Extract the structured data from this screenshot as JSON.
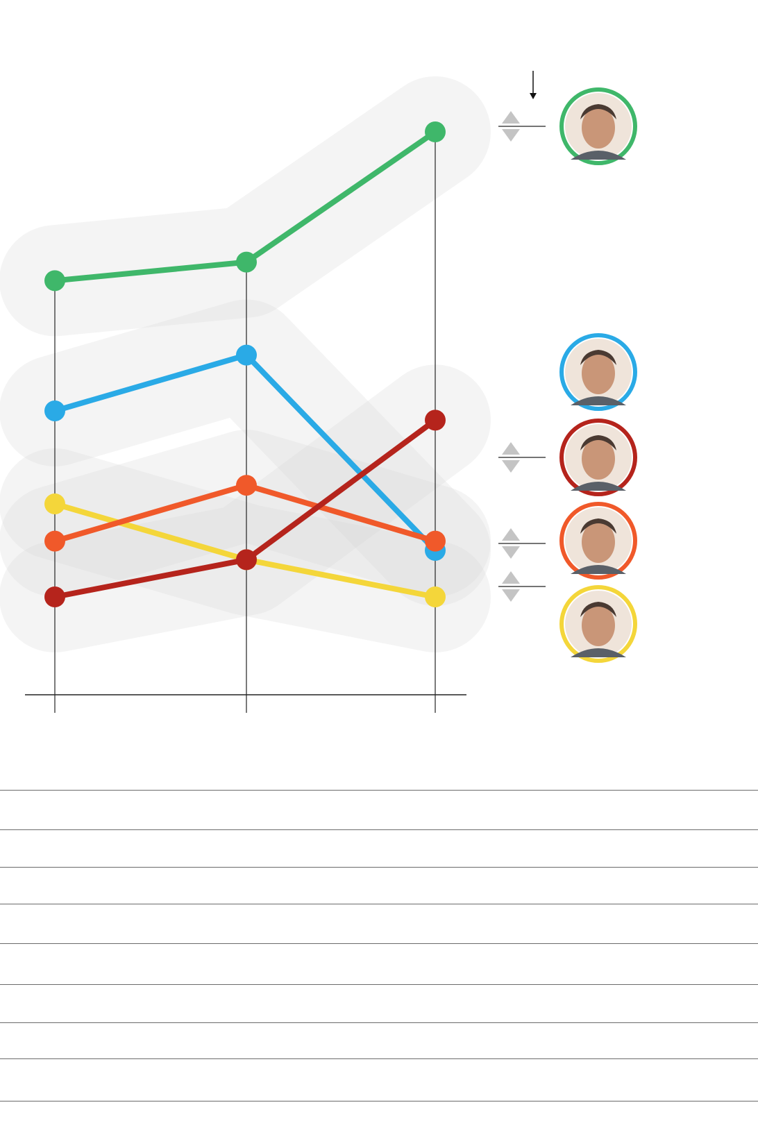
{
  "chart_data": {
    "type": "line",
    "x": [
      0,
      1,
      2
    ],
    "ylim": [
      0,
      100
    ],
    "series": [
      {
        "color": "#3fb76a",
        "values": [
          88,
          90,
          104
        ],
        "avatar": "green"
      },
      {
        "color": "#2aaae6",
        "values": [
          74,
          80,
          59
        ],
        "avatar": "blue"
      },
      {
        "color": "#f4d63a",
        "values": [
          64,
          58,
          54
        ],
        "avatar": "yellow"
      },
      {
        "color": "#f0592a",
        "values": [
          60,
          66,
          60
        ],
        "avatar": "orange"
      },
      {
        "color": "#b5241c",
        "values": [
          54,
          58,
          73
        ],
        "avatar": "darkred"
      }
    ],
    "grid": false,
    "band_color": "#d4d4d4"
  },
  "avatars": [
    {
      "name": "green",
      "color": "#3fb76a",
      "icon": "portrait-icon",
      "has_trend": true
    },
    {
      "name": "blue",
      "color": "#2aaae6",
      "icon": "portrait-icon",
      "has_trend": false
    },
    {
      "name": "darkred",
      "color": "#b5241c",
      "icon": "portrait-icon",
      "has_trend": true
    },
    {
      "name": "orange",
      "color": "#f0592a",
      "icon": "portrait-icon",
      "has_trend": true
    },
    {
      "name": "yellow",
      "color": "#f4d63a",
      "icon": "portrait-icon",
      "has_trend": false
    }
  ],
  "table": {
    "rows": 9
  }
}
